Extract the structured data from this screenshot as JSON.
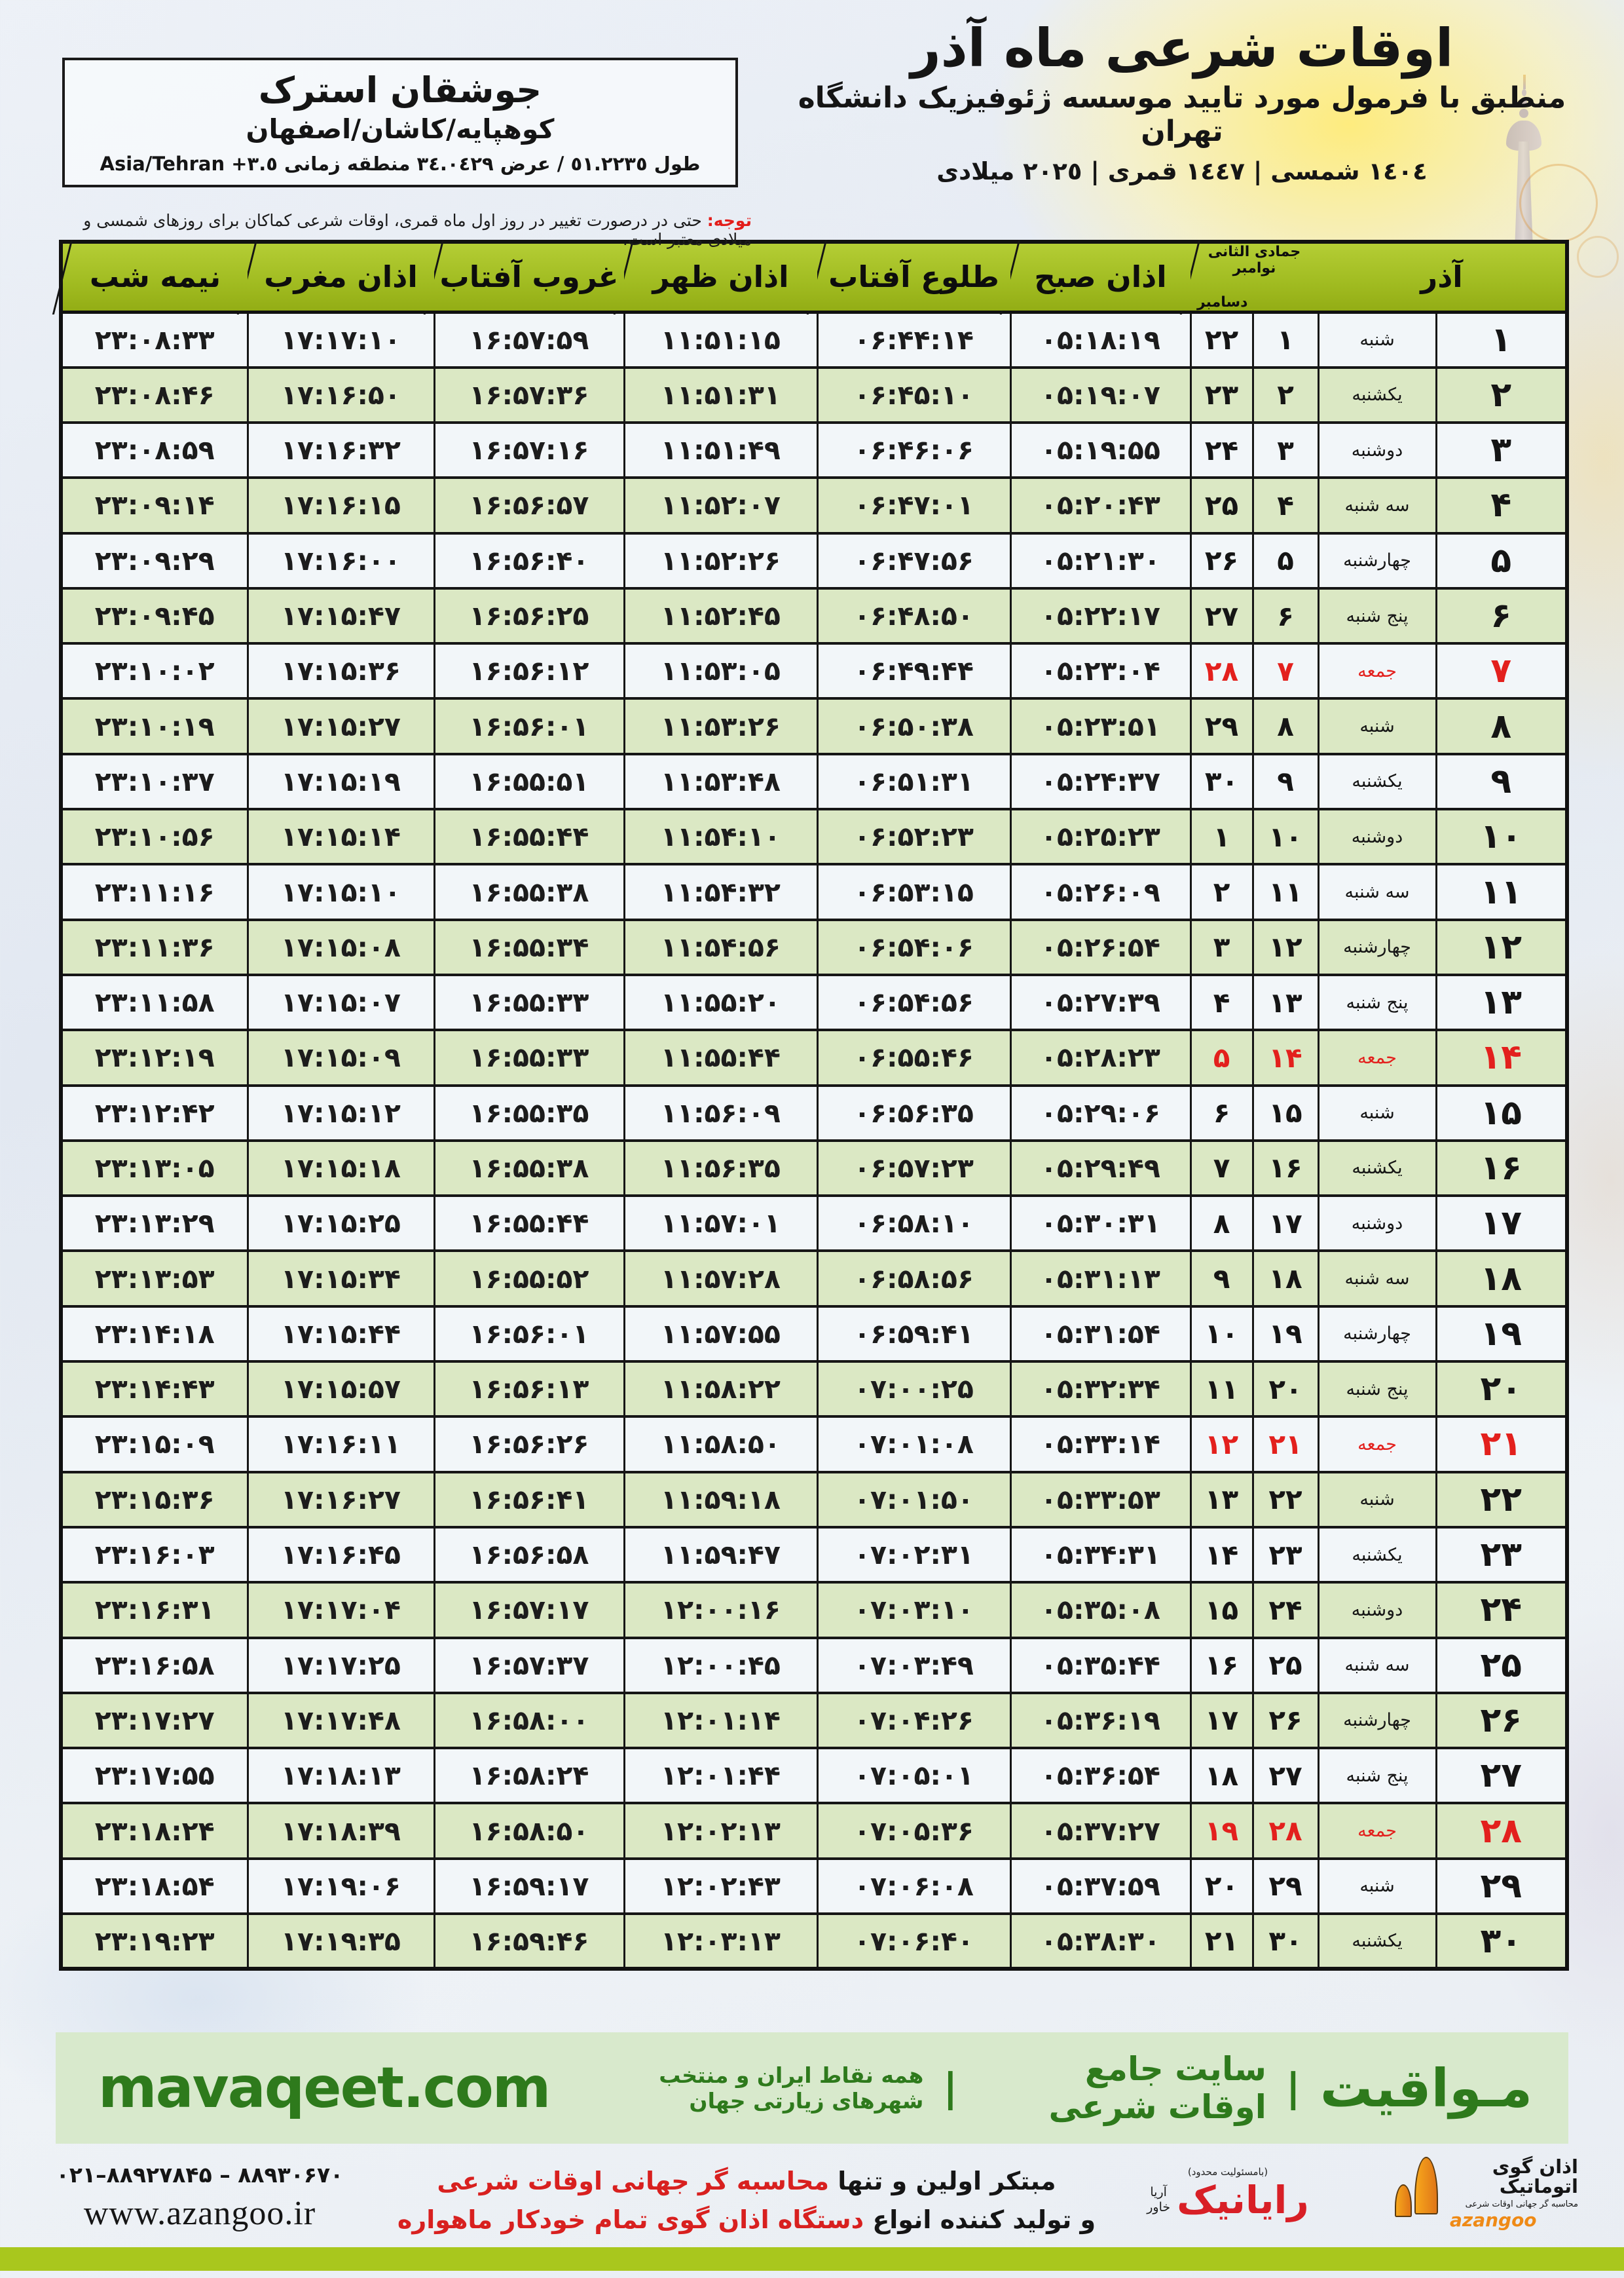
{
  "header": {
    "title": "اوقات شرعی ماه آذر",
    "subtitle": "منطبق با فرمول مورد تایید موسسه ژئوفیزیک دانشگاه تهران",
    "calendars_line": "١٤٠٤ شمسی | ١٤٤٧ قمری | ٢٠٢٥ میلادی"
  },
  "location": {
    "name": "جوشقان استرک",
    "region": "کوهپایه/کاشان/اصفهان",
    "coords": "طول ٥١.٢٢٣٥ / عرض ٣٤.٠٤٢٩ منطقه زمانی",
    "timezone": "Asia/Tehran +٣.٥"
  },
  "notice": {
    "label": "توجه:",
    "text": " حتی در درصورت تغییر در روز اول ماه قمری، اوقات شرعی کماکان برای روزهای شمسی و میلادی معتبر است."
  },
  "table": {
    "columns": {
      "azar": "آذر",
      "hijri": "جمادی الثانی",
      "greg_top": "نوامبر",
      "greg_bottom": "دسامبر",
      "fajr": "اذان صبح",
      "sunrise": "طلوع آفتاب",
      "dhuhr": "اذان ظهر",
      "sunset": "غروب آفتاب",
      "maghrib": "اذان مغرب",
      "midnight": "نیمه شب"
    },
    "rows": [
      {
        "azar": "۱",
        "weekday": "شنبه",
        "hijri": "۱",
        "greg": "۲۲",
        "fajr": "۰۵:۱۸:۱۹",
        "sunrise": "۰۶:۴۴:۱۴",
        "dhuhr": "۱۱:۵۱:۱۵",
        "sunset": "۱۶:۵۷:۵۹",
        "maghrib": "۱۷:۱۷:۱۰",
        "midnight": "۲۳:۰۸:۳۳",
        "friday": false
      },
      {
        "azar": "۲",
        "weekday": "یکشنبه",
        "hijri": "۲",
        "greg": "۲۳",
        "fajr": "۰۵:۱۹:۰۷",
        "sunrise": "۰۶:۴۵:۱۰",
        "dhuhr": "۱۱:۵۱:۳۱",
        "sunset": "۱۶:۵۷:۳۶",
        "maghrib": "۱۷:۱۶:۵۰",
        "midnight": "۲۳:۰۸:۴۶",
        "friday": false
      },
      {
        "azar": "۳",
        "weekday": "دوشنبه",
        "hijri": "۳",
        "greg": "۲۴",
        "fajr": "۰۵:۱۹:۵۵",
        "sunrise": "۰۶:۴۶:۰۶",
        "dhuhr": "۱۱:۵۱:۴۹",
        "sunset": "۱۶:۵۷:۱۶",
        "maghrib": "۱۷:۱۶:۳۲",
        "midnight": "۲۳:۰۸:۵۹",
        "friday": false
      },
      {
        "azar": "۴",
        "weekday": "سه شنبه",
        "hijri": "۴",
        "greg": "۲۵",
        "fajr": "۰۵:۲۰:۴۳",
        "sunrise": "۰۶:۴۷:۰۱",
        "dhuhr": "۱۱:۵۲:۰۷",
        "sunset": "۱۶:۵۶:۵۷",
        "maghrib": "۱۷:۱۶:۱۵",
        "midnight": "۲۳:۰۹:۱۴",
        "friday": false
      },
      {
        "azar": "۵",
        "weekday": "چهارشنبه",
        "hijri": "۵",
        "greg": "۲۶",
        "fajr": "۰۵:۲۱:۳۰",
        "sunrise": "۰۶:۴۷:۵۶",
        "dhuhr": "۱۱:۵۲:۲۶",
        "sunset": "۱۶:۵۶:۴۰",
        "maghrib": "۱۷:۱۶:۰۰",
        "midnight": "۲۳:۰۹:۲۹",
        "friday": false
      },
      {
        "azar": "۶",
        "weekday": "پنج شنبه",
        "hijri": "۶",
        "greg": "۲۷",
        "fajr": "۰۵:۲۲:۱۷",
        "sunrise": "۰۶:۴۸:۵۰",
        "dhuhr": "۱۱:۵۲:۴۵",
        "sunset": "۱۶:۵۶:۲۵",
        "maghrib": "۱۷:۱۵:۴۷",
        "midnight": "۲۳:۰۹:۴۵",
        "friday": false
      },
      {
        "azar": "۷",
        "weekday": "جمعه",
        "hijri": "۷",
        "greg": "۲۸",
        "fajr": "۰۵:۲۳:۰۴",
        "sunrise": "۰۶:۴۹:۴۴",
        "dhuhr": "۱۱:۵۳:۰۵",
        "sunset": "۱۶:۵۶:۱۲",
        "maghrib": "۱۷:۱۵:۳۶",
        "midnight": "۲۳:۱۰:۰۲",
        "friday": true
      },
      {
        "azar": "۸",
        "weekday": "شنبه",
        "hijri": "۸",
        "greg": "۲۹",
        "fajr": "۰۵:۲۳:۵۱",
        "sunrise": "۰۶:۵۰:۳۸",
        "dhuhr": "۱۱:۵۳:۲۶",
        "sunset": "۱۶:۵۶:۰۱",
        "maghrib": "۱۷:۱۵:۲۷",
        "midnight": "۲۳:۱۰:۱۹",
        "friday": false
      },
      {
        "azar": "۹",
        "weekday": "یکشنبه",
        "hijri": "۹",
        "greg": "۳۰",
        "fajr": "۰۵:۲۴:۳۷",
        "sunrise": "۰۶:۵۱:۳۱",
        "dhuhr": "۱۱:۵۳:۴۸",
        "sunset": "۱۶:۵۵:۵۱",
        "maghrib": "۱۷:۱۵:۱۹",
        "midnight": "۲۳:۱۰:۳۷",
        "friday": false
      },
      {
        "azar": "۱۰",
        "weekday": "دوشنبه",
        "hijri": "۱۰",
        "greg": "۱",
        "fajr": "۰۵:۲۵:۲۳",
        "sunrise": "۰۶:۵۲:۲۳",
        "dhuhr": "۱۱:۵۴:۱۰",
        "sunset": "۱۶:۵۵:۴۴",
        "maghrib": "۱۷:۱۵:۱۴",
        "midnight": "۲۳:۱۰:۵۶",
        "friday": false
      },
      {
        "azar": "۱۱",
        "weekday": "سه شنبه",
        "hijri": "۱۱",
        "greg": "۲",
        "fajr": "۰۵:۲۶:۰۹",
        "sunrise": "۰۶:۵۳:۱۵",
        "dhuhr": "۱۱:۵۴:۳۲",
        "sunset": "۱۶:۵۵:۳۸",
        "maghrib": "۱۷:۱۵:۱۰",
        "midnight": "۲۳:۱۱:۱۶",
        "friday": false
      },
      {
        "azar": "۱۲",
        "weekday": "چهارشنبه",
        "hijri": "۱۲",
        "greg": "۳",
        "fajr": "۰۵:۲۶:۵۴",
        "sunrise": "۰۶:۵۴:۰۶",
        "dhuhr": "۱۱:۵۴:۵۶",
        "sunset": "۱۶:۵۵:۳۴",
        "maghrib": "۱۷:۱۵:۰۸",
        "midnight": "۲۳:۱۱:۳۶",
        "friday": false
      },
      {
        "azar": "۱۳",
        "weekday": "پنج شنبه",
        "hijri": "۱۳",
        "greg": "۴",
        "fajr": "۰۵:۲۷:۳۹",
        "sunrise": "۰۶:۵۴:۵۶",
        "dhuhr": "۱۱:۵۵:۲۰",
        "sunset": "۱۶:۵۵:۳۳",
        "maghrib": "۱۷:۱۵:۰۷",
        "midnight": "۲۳:۱۱:۵۸",
        "friday": false
      },
      {
        "azar": "۱۴",
        "weekday": "جمعه",
        "hijri": "۱۴",
        "greg": "۵",
        "fajr": "۰۵:۲۸:۲۳",
        "sunrise": "۰۶:۵۵:۴۶",
        "dhuhr": "۱۱:۵۵:۴۴",
        "sunset": "۱۶:۵۵:۳۳",
        "maghrib": "۱۷:۱۵:۰۹",
        "midnight": "۲۳:۱۲:۱۹",
        "friday": true
      },
      {
        "azar": "۱۵",
        "weekday": "شنبه",
        "hijri": "۱۵",
        "greg": "۶",
        "fajr": "۰۵:۲۹:۰۶",
        "sunrise": "۰۶:۵۶:۳۵",
        "dhuhr": "۱۱:۵۶:۰۹",
        "sunset": "۱۶:۵۵:۳۵",
        "maghrib": "۱۷:۱۵:۱۲",
        "midnight": "۲۳:۱۲:۴۲",
        "friday": false
      },
      {
        "azar": "۱۶",
        "weekday": "یکشنبه",
        "hijri": "۱۶",
        "greg": "۷",
        "fajr": "۰۵:۲۹:۴۹",
        "sunrise": "۰۶:۵۷:۲۳",
        "dhuhr": "۱۱:۵۶:۳۵",
        "sunset": "۱۶:۵۵:۳۸",
        "maghrib": "۱۷:۱۵:۱۸",
        "midnight": "۲۳:۱۳:۰۵",
        "friday": false
      },
      {
        "azar": "۱۷",
        "weekday": "دوشنبه",
        "hijri": "۱۷",
        "greg": "۸",
        "fajr": "۰۵:۳۰:۳۱",
        "sunrise": "۰۶:۵۸:۱۰",
        "dhuhr": "۱۱:۵۷:۰۱",
        "sunset": "۱۶:۵۵:۴۴",
        "maghrib": "۱۷:۱۵:۲۵",
        "midnight": "۲۳:۱۳:۲۹",
        "friday": false
      },
      {
        "azar": "۱۸",
        "weekday": "سه شنبه",
        "hijri": "۱۸",
        "greg": "۹",
        "fajr": "۰۵:۳۱:۱۳",
        "sunrise": "۰۶:۵۸:۵۶",
        "dhuhr": "۱۱:۵۷:۲۸",
        "sunset": "۱۶:۵۵:۵۲",
        "maghrib": "۱۷:۱۵:۳۴",
        "midnight": "۲۳:۱۳:۵۳",
        "friday": false
      },
      {
        "azar": "۱۹",
        "weekday": "چهارشنبه",
        "hijri": "۱۹",
        "greg": "۱۰",
        "fajr": "۰۵:۳۱:۵۴",
        "sunrise": "۰۶:۵۹:۴۱",
        "dhuhr": "۱۱:۵۷:۵۵",
        "sunset": "۱۶:۵۶:۰۱",
        "maghrib": "۱۷:۱۵:۴۴",
        "midnight": "۲۳:۱۴:۱۸",
        "friday": false
      },
      {
        "azar": "۲۰",
        "weekday": "پنج شنبه",
        "hijri": "۲۰",
        "greg": "۱۱",
        "fajr": "۰۵:۳۲:۳۴",
        "sunrise": "۰۷:۰۰:۲۵",
        "dhuhr": "۱۱:۵۸:۲۲",
        "sunset": "۱۶:۵۶:۱۳",
        "maghrib": "۱۷:۱۵:۵۷",
        "midnight": "۲۳:۱۴:۴۳",
        "friday": false
      },
      {
        "azar": "۲۱",
        "weekday": "جمعه",
        "hijri": "۲۱",
        "greg": "۱۲",
        "fajr": "۰۵:۳۳:۱۴",
        "sunrise": "۰۷:۰۱:۰۸",
        "dhuhr": "۱۱:۵۸:۵۰",
        "sunset": "۱۶:۵۶:۲۶",
        "maghrib": "۱۷:۱۶:۱۱",
        "midnight": "۲۳:۱۵:۰۹",
        "friday": true
      },
      {
        "azar": "۲۲",
        "weekday": "شنبه",
        "hijri": "۲۲",
        "greg": "۱۳",
        "fajr": "۰۵:۳۳:۵۳",
        "sunrise": "۰۷:۰۱:۵۰",
        "dhuhr": "۱۱:۵۹:۱۸",
        "sunset": "۱۶:۵۶:۴۱",
        "maghrib": "۱۷:۱۶:۲۷",
        "midnight": "۲۳:۱۵:۳۶",
        "friday": false
      },
      {
        "azar": "۲۳",
        "weekday": "یکشنبه",
        "hijri": "۲۳",
        "greg": "۱۴",
        "fajr": "۰۵:۳۴:۳۱",
        "sunrise": "۰۷:۰۲:۳۱",
        "dhuhr": "۱۱:۵۹:۴۷",
        "sunset": "۱۶:۵۶:۵۸",
        "maghrib": "۱۷:۱۶:۴۵",
        "midnight": "۲۳:۱۶:۰۳",
        "friday": false
      },
      {
        "azar": "۲۴",
        "weekday": "دوشنبه",
        "hijri": "۲۴",
        "greg": "۱۵",
        "fajr": "۰۵:۳۵:۰۸",
        "sunrise": "۰۷:۰۳:۱۰",
        "dhuhr": "۱۲:۰۰:۱۶",
        "sunset": "۱۶:۵۷:۱۷",
        "maghrib": "۱۷:۱۷:۰۴",
        "midnight": "۲۳:۱۶:۳۱",
        "friday": false
      },
      {
        "azar": "۲۵",
        "weekday": "سه شنبه",
        "hijri": "۲۵",
        "greg": "۱۶",
        "fajr": "۰۵:۳۵:۴۴",
        "sunrise": "۰۷:۰۳:۴۹",
        "dhuhr": "۱۲:۰۰:۴۵",
        "sunset": "۱۶:۵۷:۳۷",
        "maghrib": "۱۷:۱۷:۲۵",
        "midnight": "۲۳:۱۶:۵۸",
        "friday": false
      },
      {
        "azar": "۲۶",
        "weekday": "چهارشنبه",
        "hijri": "۲۶",
        "greg": "۱۷",
        "fajr": "۰۵:۳۶:۱۹",
        "sunrise": "۰۷:۰۴:۲۶",
        "dhuhr": "۱۲:۰۱:۱۴",
        "sunset": "۱۶:۵۸:۰۰",
        "maghrib": "۱۷:۱۷:۴۸",
        "midnight": "۲۳:۱۷:۲۷",
        "friday": false
      },
      {
        "azar": "۲۷",
        "weekday": "پنج شنبه",
        "hijri": "۲۷",
        "greg": "۱۸",
        "fajr": "۰۵:۳۶:۵۴",
        "sunrise": "۰۷:۰۵:۰۱",
        "dhuhr": "۱۲:۰۱:۴۴",
        "sunset": "۱۶:۵۸:۲۴",
        "maghrib": "۱۷:۱۸:۱۳",
        "midnight": "۲۳:۱۷:۵۵",
        "friday": false
      },
      {
        "azar": "۲۸",
        "weekday": "جمعه",
        "hijri": "۲۸",
        "greg": "۱۹",
        "fajr": "۰۵:۳۷:۲۷",
        "sunrise": "۰۷:۰۵:۳۶",
        "dhuhr": "۱۲:۰۲:۱۳",
        "sunset": "۱۶:۵۸:۵۰",
        "maghrib": "۱۷:۱۸:۳۹",
        "midnight": "۲۳:۱۸:۲۴",
        "friday": true
      },
      {
        "azar": "۲۹",
        "weekday": "شنبه",
        "hijri": "۲۹",
        "greg": "۲۰",
        "fajr": "۰۵:۳۷:۵۹",
        "sunrise": "۰۷:۰۶:۰۸",
        "dhuhr": "۱۲:۰۲:۴۳",
        "sunset": "۱۶:۵۹:۱۷",
        "maghrib": "۱۷:۱۹:۰۶",
        "midnight": "۲۳:۱۸:۵۴",
        "friday": false
      },
      {
        "azar": "۳۰",
        "weekday": "یکشنبه",
        "hijri": "۳۰",
        "greg": "۲۱",
        "fajr": "۰۵:۳۸:۳۰",
        "sunrise": "۰۷:۰۶:۴۰",
        "dhuhr": "۱۲:۰۳:۱۳",
        "sunset": "۱۶:۵۹:۴۶",
        "maghrib": "۱۷:۱۹:۳۵",
        "midnight": "۲۳:۱۹:۲۳",
        "friday": false
      }
    ]
  },
  "mavaqeet": {
    "brand": "مـواقیت",
    "separator": "|",
    "site_label": "سایت جامع اوقات شرعی",
    "coverage": "همه نقاط ایران و منتخب شهرهای زیارتی جهان",
    "domain": "mavaqeet.com"
  },
  "bottom": {
    "phone": "۰۲۱–۸۸۹۲۷۸۴۵ – ۸۸۹۳۰۶۷۰",
    "website": "www.azangoo.ir",
    "line1_black": "مبتکر اولین و تنها",
    "line1_red": " محاسبه گر جهانی اوقات شرعی",
    "line2_black": "و تولید کننده انواع",
    "line2_red": " دستگاه اذان گوی تمام خودکار ماهواره ای",
    "rayanik": {
      "name": "رایانیک",
      "sub1_top": "آریا",
      "sub1_bottom": "خاور",
      "sub2": "(بامسئولیت محدود)"
    },
    "azangoo": {
      "name_fa": "اذان گوی اتوماتیک",
      "tagline": "محاسبه گر جهانی اوقات شرعی",
      "name_en": "azangoo"
    }
  },
  "colors": {
    "header_green": "#a2bd22",
    "row_green": "#dbe8c4",
    "row_white": "#f2f6f9",
    "friday_red": "#e3201d",
    "banner_bg": "#d8e9cc",
    "banner_green": "#2e7a1c",
    "band_green": "#a9c71d",
    "logo_orange": "#ef8a16"
  }
}
